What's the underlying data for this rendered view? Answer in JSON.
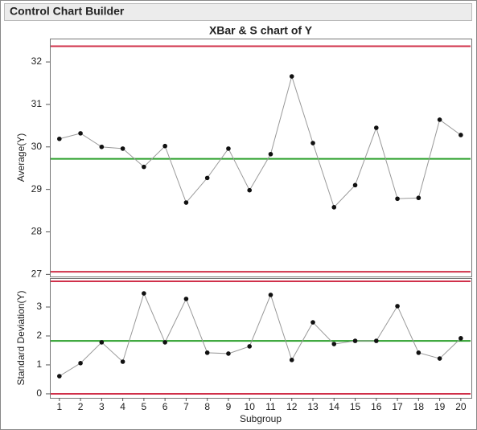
{
  "header": {
    "title": "Control Chart Builder"
  },
  "chart_data": [
    {
      "type": "line",
      "title": "XBar & S chart of Y",
      "y_label": "Average(Y)",
      "x": [
        1,
        2,
        3,
        4,
        5,
        6,
        7,
        8,
        9,
        10,
        11,
        12,
        13,
        14,
        15,
        16,
        17,
        18,
        19,
        20
      ],
      "values": [
        30.19,
        30.32,
        30.0,
        29.96,
        29.53,
        30.02,
        28.69,
        29.27,
        29.96,
        28.98,
        29.83,
        31.66,
        30.09,
        28.58,
        29.1,
        30.45,
        28.78,
        28.8,
        30.64,
        30.28
      ],
      "ucl": 32.37,
      "center": 29.72,
      "lcl": 27.06,
      "xlim": [
        0.55,
        20.5
      ],
      "ylim": [
        26.95,
        32.55
      ],
      "yticks": [
        27,
        28,
        29,
        30,
        31,
        32
      ],
      "color": "#555555",
      "limit_color": "#d0304a",
      "center_color": "#2ca02c"
    },
    {
      "type": "line",
      "y_label": "Standard Deviation(Y)",
      "x_label": "Subgroup",
      "x": [
        1,
        2,
        3,
        4,
        5,
        6,
        7,
        8,
        9,
        10,
        11,
        12,
        13,
        14,
        15,
        16,
        17,
        18,
        19,
        20
      ],
      "values": [
        0.61,
        1.06,
        1.78,
        1.11,
        3.47,
        1.78,
        3.28,
        1.42,
        1.39,
        1.64,
        3.42,
        1.17,
        2.47,
        1.72,
        1.83,
        1.83,
        3.03,
        1.42,
        1.22,
        1.92
      ],
      "ucl": 3.89,
      "center": 1.83,
      "lcl": 0,
      "xlim": [
        0.55,
        20.5
      ],
      "ylim": [
        -0.14,
        4.0
      ],
      "yticks": [
        0,
        1,
        2,
        3
      ],
      "xticks": [
        1,
        2,
        3,
        4,
        5,
        6,
        7,
        8,
        9,
        10,
        11,
        12,
        13,
        14,
        15,
        16,
        17,
        18,
        19,
        20
      ],
      "color": "#555555",
      "limit_color": "#d0304a",
      "center_color": "#2ca02c"
    }
  ]
}
